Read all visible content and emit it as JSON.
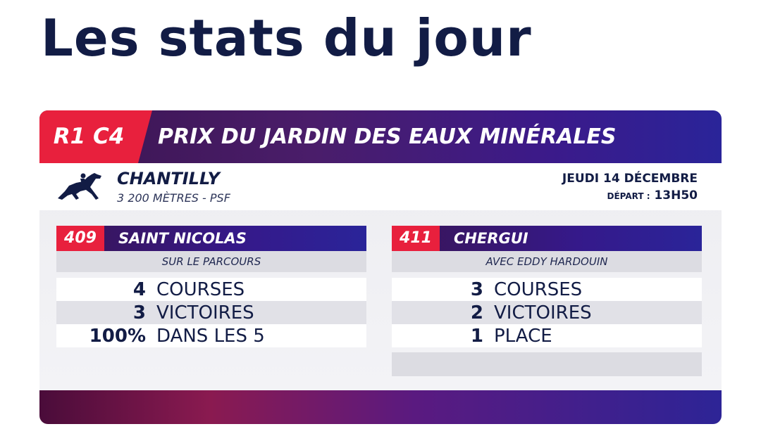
{
  "page": {
    "title": "Les stats du jour"
  },
  "race": {
    "code": "R1 C4",
    "name": "PRIX DU JARDIN DES EAUX MINÉRALES",
    "venue": "CHANTILLY",
    "details": "3 200 MÈTRES - PSF",
    "date": "JEUDI 14 DÉCEMBRE",
    "departure_label": "DÉPART :",
    "departure_time": "13H50"
  },
  "horses": [
    {
      "number": "409",
      "name": "SAINT NICOLAS",
      "subtitle": "SUR LE PARCOURS",
      "stats": [
        {
          "value": "4",
          "label": "COURSES"
        },
        {
          "value": "3",
          "label": "VICTOIRES"
        },
        {
          "value": "100%",
          "label": "DANS LES 5"
        }
      ]
    },
    {
      "number": "411",
      "name": "CHERGUI",
      "subtitle": "AVEC EDDY HARDOUIN",
      "stats": [
        {
          "value": "3",
          "label": "COURSES"
        },
        {
          "value": "2",
          "label": "VICTOIRES"
        },
        {
          "value": "1",
          "label": "PLACE"
        }
      ]
    }
  ],
  "icons": {
    "venue_logo": "galloping-horse-icon"
  },
  "colors": {
    "navy": "#121c45",
    "red": "#e8203d",
    "purple": "#3b1a8a"
  }
}
